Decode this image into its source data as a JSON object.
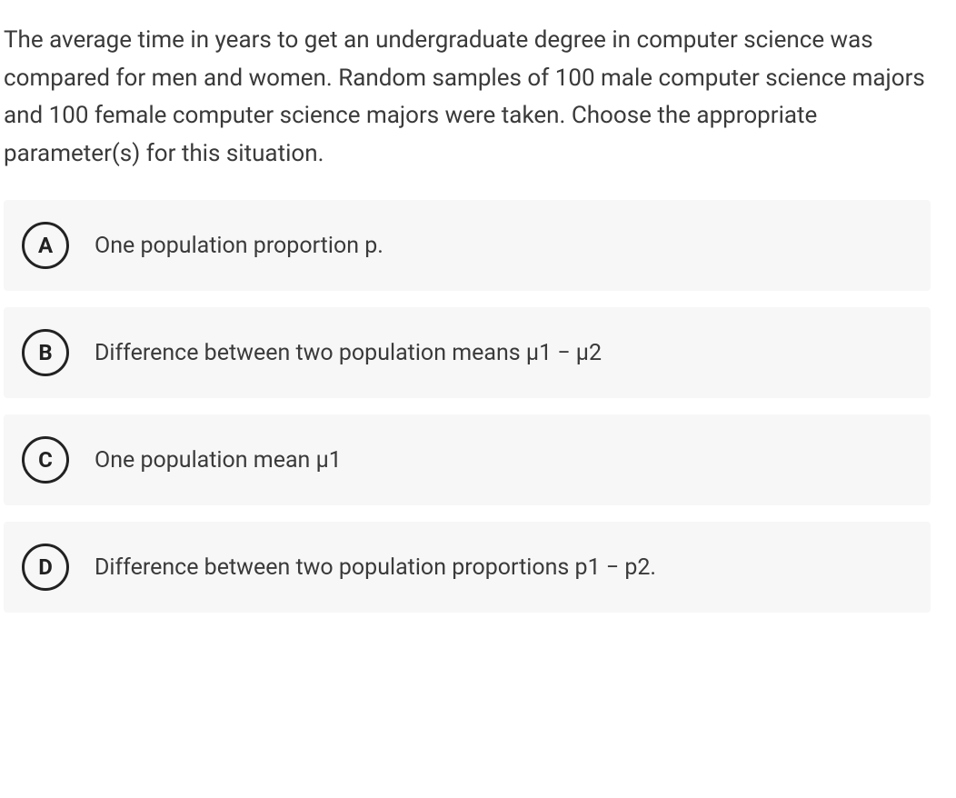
{
  "question": {
    "text": "The average time in years to get an undergraduate degree in computer science was compared for men and women. Random samples of 100 male computer science majors and 100 female computer science majors were taken. Choose the appropriate parameter(s) for this situation.",
    "fontsize": 26,
    "color": "#3a3a3a",
    "line_height": 1.6
  },
  "options": [
    {
      "letter": "A",
      "text": "One population proportion p."
    },
    {
      "letter": "B",
      "text": "Difference between two population means μ1 − μ2"
    },
    {
      "letter": "C",
      "text": "One population mean μ1"
    },
    {
      "letter": "D",
      "text": "Difference between two population proportions p1 − p2."
    }
  ],
  "styles": {
    "option_background": "#f7f7f7",
    "option_fontsize": 25,
    "letter_border_color": "#222222",
    "letter_border_width": 3.5,
    "letter_size": 52,
    "letter_fontsize": 24,
    "body_background": "#ffffff",
    "gap_between_options": 18
  }
}
